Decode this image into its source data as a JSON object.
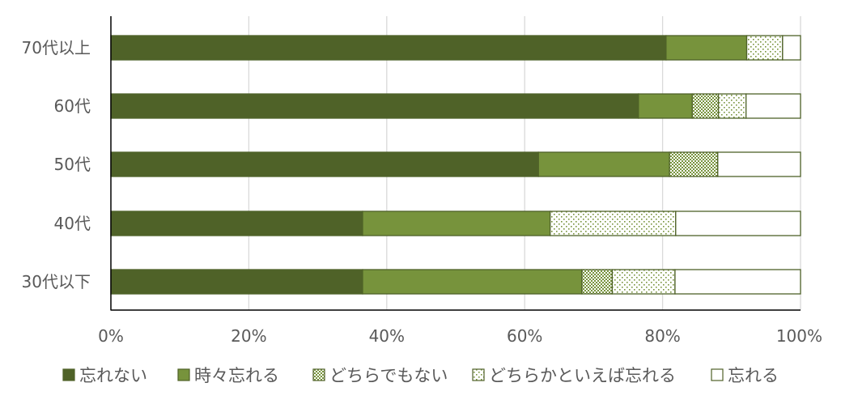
{
  "chart_data": {
    "type": "bar",
    "orientation": "horizontal",
    "stacked": "percent",
    "categories": [
      "70代以上",
      "60代",
      "50代",
      "40代",
      "30代以下"
    ],
    "series": [
      {
        "name": "忘れない",
        "values": [
          80.5,
          76.5,
          62.0,
          36.5,
          36.5
        ],
        "color": "#4f6228",
        "pattern": "solid"
      },
      {
        "name": "時々忘れる",
        "values": [
          11.7,
          7.8,
          19.0,
          27.2,
          31.8
        ],
        "color": "#77933c",
        "pattern": "solid"
      },
      {
        "name": "どちらでもない",
        "values": [
          0,
          3.8,
          7.0,
          0,
          4.4
        ],
        "color": "#77933c",
        "pattern": "dense-dots"
      },
      {
        "name": "どちらかといえば忘れる",
        "values": [
          5.2,
          4.0,
          0,
          18.2,
          9.1
        ],
        "color": "#77933c",
        "pattern": "sparse-dots"
      },
      {
        "name": "忘れる",
        "values": [
          2.6,
          7.9,
          12.0,
          18.1,
          18.2
        ],
        "color": "#ffffff",
        "pattern": "outline"
      }
    ],
    "x_ticks": [
      "0%",
      "20%",
      "40%",
      "60%",
      "80%",
      "100%"
    ],
    "xlim": [
      0,
      100
    ],
    "grid": "vertical",
    "legend_position": "bottom"
  }
}
